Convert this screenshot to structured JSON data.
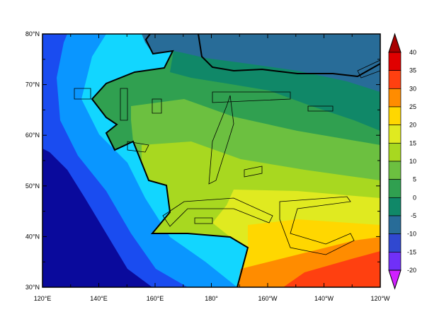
{
  "chart_data": {
    "type": "heatmap",
    "title": "",
    "projection": "cylindrical equidistant",
    "lon_range": [
      "120°E",
      "120°W"
    ],
    "lat_range": [
      "30°N",
      "80°N"
    ],
    "x_ticks": [
      "120°E",
      "140°E",
      "160°E",
      "180°",
      "160°W",
      "140°W",
      "120°W"
    ],
    "y_ticks": [
      "30°N",
      "40°N",
      "50°N",
      "60°N",
      "70°N",
      "80°N"
    ],
    "colorbar": {
      "levels": [
        "40",
        "35",
        "30",
        "25",
        "20",
        "15",
        "10",
        "5",
        "0",
        "-5",
        "-10",
        "-15",
        "-20"
      ],
      "colors": [
        "#a80000",
        "#e00000",
        "#ff4010",
        "#ff8c00",
        "#ffd700",
        "#e0ea20",
        "#a8d820",
        "#6cc040",
        "#30a050",
        "#108868",
        "#286c98",
        "#3048d0",
        "#7030f8",
        "#d020ff"
      ],
      "extend": "both",
      "placement": "right"
    },
    "overlay": "black contour lines over land/coastline"
  }
}
